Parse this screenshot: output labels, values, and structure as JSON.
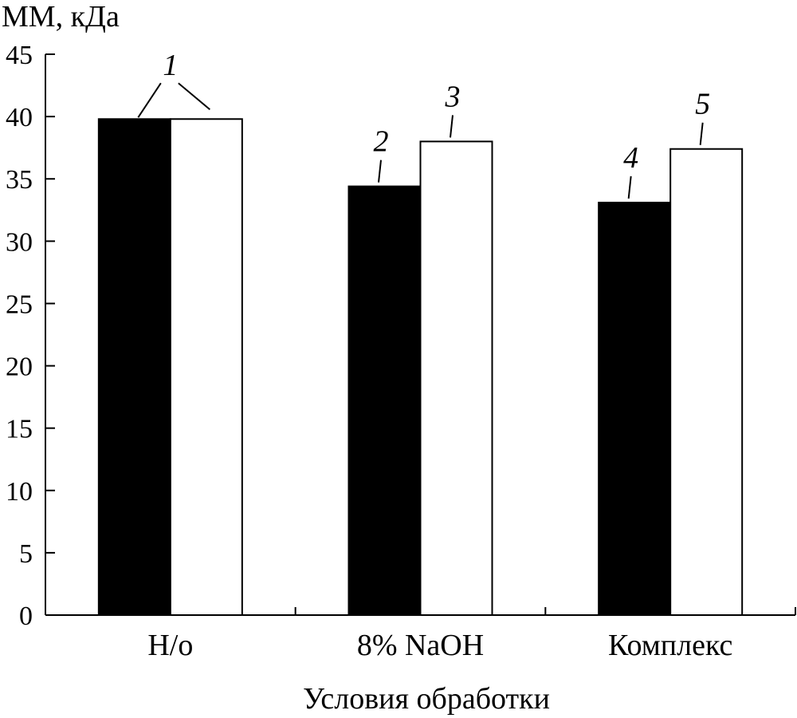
{
  "chart_data": {
    "type": "bar",
    "ylabel": "ММ, кДа",
    "xlabel": "Условия обработки",
    "ylim": [
      0,
      45
    ],
    "yticks": [
      0,
      5,
      10,
      15,
      20,
      25,
      30,
      35,
      40,
      45
    ],
    "categories": [
      "Н/о",
      "8% NaOH",
      "Комплекс"
    ],
    "series": [
      {
        "fill": "#000000",
        "values": [
          39.8,
          34.4,
          33.1
        ],
        "bar_labels": [
          "1",
          "2",
          "4"
        ]
      },
      {
        "fill": "#ffffff",
        "values": [
          39.8,
          38.0,
          37.4
        ],
        "bar_labels": [
          "1",
          "3",
          "5"
        ]
      }
    ],
    "legend": "none",
    "grid": false
  }
}
